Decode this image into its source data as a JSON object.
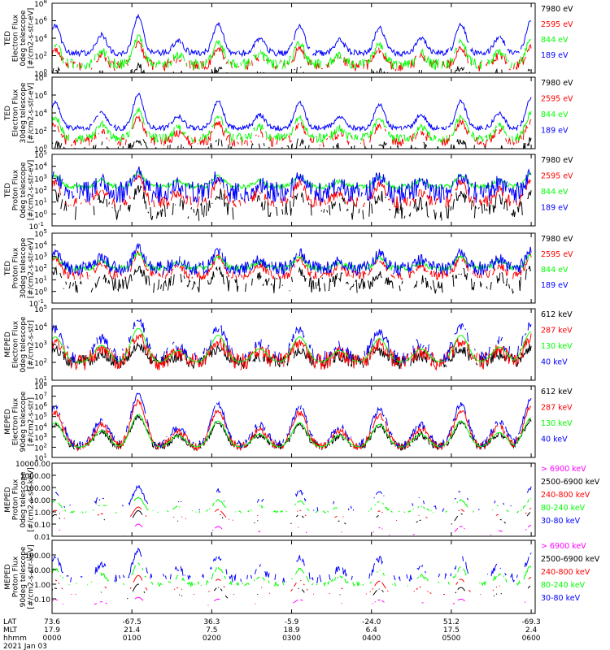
{
  "figure": {
    "footer_labels": [
      "LAT",
      "MLT",
      "hhmm",
      "2021 Jan 03"
    ],
    "time_axis": {
      "ticks": [
        "0000",
        "0100",
        "0200",
        "0300",
        "0400",
        "0500",
        "0600"
      ],
      "lat": [
        "73.6",
        "-67.5",
        "36.3",
        "-5.9",
        "-24.0",
        "51.2",
        "-69.3"
      ],
      "mlt": [
        "17.9",
        "21.4",
        "7.5",
        "18.9",
        "6.4",
        "17.5",
        "2.4"
      ]
    }
  },
  "chart_data": [
    {
      "type": "line",
      "id": "ted_e0",
      "ylabel": [
        "TED",
        "Electron Flux",
        "0deg telescope",
        "[#/cm2-s-str-eV]"
      ],
      "log": true,
      "ylim": [
        1,
        100000000
      ],
      "ytick_labels": [
        "10^0",
        "10^2",
        "10^4",
        "10^6",
        "10^8"
      ],
      "series": [
        {
          "name": "7980 eV",
          "color": "#000000",
          "floor_exp": -1.0,
          "range_exp": 1.8,
          "noise": 0.9,
          "gap": 0.55
        },
        {
          "name": "2595 eV",
          "color": "#ff0000",
          "floor_exp": 0.8,
          "range_exp": 2.6,
          "noise": 0.6,
          "gap": 0.3
        },
        {
          "name": "844 eV",
          "color": "#00ff00",
          "floor_exp": 1.0,
          "range_exp": 3.2,
          "noise": 0.6,
          "gap": 0.2
        },
        {
          "name": "189 eV",
          "color": "#0000ff",
          "floor_exp": 2.3,
          "range_exp": 4.2,
          "noise": 0.35,
          "gap": 0.02
        }
      ]
    },
    {
      "type": "line",
      "id": "ted_e30",
      "ylabel": [
        "TED",
        "Electron Flux",
        "30deg telescope",
        "[#/cm2-s-str-eV]"
      ],
      "log": true,
      "ylim": [
        1,
        100000000
      ],
      "ytick_labels": [
        "10^0",
        "10^2",
        "10^4",
        "10^6",
        "10^8"
      ],
      "series": [
        {
          "name": "7980 eV",
          "color": "#000000",
          "floor_exp": -0.5,
          "range_exp": 1.5,
          "noise": 0.9,
          "gap": 0.5
        },
        {
          "name": "2595 eV",
          "color": "#ff0000",
          "floor_exp": 0.8,
          "range_exp": 2.6,
          "noise": 0.6,
          "gap": 0.3
        },
        {
          "name": "844 eV",
          "color": "#00ff00",
          "floor_exp": 1.2,
          "range_exp": 3.1,
          "noise": 0.5,
          "gap": 0.15
        },
        {
          "name": "189 eV",
          "color": "#0000ff",
          "floor_exp": 2.3,
          "range_exp": 3.8,
          "noise": 0.3,
          "gap": 0.02
        }
      ]
    },
    {
      "type": "line",
      "id": "ted_p0",
      "ylabel": [
        "TED",
        "Proton Flux",
        "0deg telescope",
        "[#/cm2-s-str-eV]"
      ],
      "log": true,
      "ylim": [
        0.1,
        100000
      ],
      "ytick_labels": [
        "10^-1",
        "10^0",
        "10^1",
        "10^2",
        "10^3",
        "10^4",
        "10^5"
      ],
      "series": [
        {
          "name": "7980 eV",
          "color": "#000000",
          "floor_exp": 0.2,
          "range_exp": 2.0,
          "noise": 0.8,
          "gap": 0.45
        },
        {
          "name": "2595 eV",
          "color": "#ff0000",
          "floor_exp": 1.0,
          "range_exp": 2.2,
          "noise": 0.5,
          "gap": 0.3
        },
        {
          "name": "844 eV",
          "color": "#00ff00",
          "floor_exp": 2.3,
          "range_exp": 1.2,
          "noise": 0.2,
          "gap": 0.0
        },
        {
          "name": "189 eV",
          "color": "#0000ff",
          "floor_exp": 1.8,
          "range_exp": 1.8,
          "noise": 0.9,
          "gap": 0.1
        }
      ]
    },
    {
      "type": "line",
      "id": "ted_p30",
      "ylabel": [
        "TED",
        "Proton Flux",
        "30deg telescope",
        "[#/cm2-s-str-eV]"
      ],
      "log": true,
      "ylim": [
        0.1,
        100000
      ],
      "ytick_labels": [
        "10^-1",
        "10^0",
        "10^1",
        "10^2",
        "10^3",
        "10^4",
        "10^5"
      ],
      "series": [
        {
          "name": "7980 eV",
          "color": "#000000",
          "floor_exp": 0.5,
          "range_exp": 1.6,
          "noise": 0.7,
          "gap": 0.35
        },
        {
          "name": "2595 eV",
          "color": "#ff0000",
          "floor_exp": 1.4,
          "range_exp": 1.9,
          "noise": 0.4,
          "gap": 0.2
        },
        {
          "name": "844 eV",
          "color": "#00ff00",
          "floor_exp": 2.0,
          "range_exp": 1.3,
          "noise": 0.25,
          "gap": 0.0
        },
        {
          "name": "189 eV",
          "color": "#0000ff",
          "floor_exp": 2.0,
          "range_exp": 1.8,
          "noise": 0.6,
          "gap": 0.05
        }
      ]
    },
    {
      "type": "line",
      "id": "meped_e0",
      "ylabel": [
        "MEPED",
        "Electron Flux",
        "0deg telescope",
        "[#/cm2-s-str]"
      ],
      "log": true,
      "ylim": [
        10,
        100000
      ],
      "ytick_labels": [
        "10^1",
        "10^2",
        "10^3",
        "10^4",
        "10^5"
      ],
      "series": [
        {
          "name": "612 keV",
          "color": "#000000",
          "floor_exp": 2.0,
          "range_exp": 0.9,
          "noise": 0.4,
          "gap": 0.1
        },
        {
          "name": "287 keV",
          "color": "#ff0000",
          "floor_exp": 2.0,
          "range_exp": 1.5,
          "noise": 0.5,
          "gap": 0.05
        },
        {
          "name": "130 keV",
          "color": "#00ff00",
          "floor_exp": 2.0,
          "range_exp": 1.9,
          "noise": 0.0,
          "gap": 0.0
        },
        {
          "name": "40 keV",
          "color": "#0000ff",
          "floor_exp": 2.2,
          "range_exp": 2.2,
          "noise": 0.4,
          "gap": 0.5
        }
      ]
    },
    {
      "type": "line",
      "id": "meped_e90",
      "ylabel": [
        "MEPED",
        "Electron Flux",
        "90deg telescope",
        "[#/cm2-s-str]"
      ],
      "log": true,
      "ylim": [
        10,
        100000000
      ],
      "ytick_labels": [
        "10^1",
        "10^2",
        "10^3",
        "10^4",
        "10^5",
        "10^6",
        "10^7",
        "10^8"
      ],
      "series": [
        {
          "name": "612 keV",
          "color": "#000000",
          "floor_exp": 2.0,
          "range_exp": 3.0,
          "noise": 0.4,
          "gap": 0.1
        },
        {
          "name": "287 keV",
          "color": "#ff0000",
          "floor_exp": 2.0,
          "range_exp": 4.5,
          "noise": 0.4,
          "gap": 0.05
        },
        {
          "name": "130 keV",
          "color": "#00ff00",
          "floor_exp": 2.0,
          "range_exp": 3.2,
          "noise": 0.0,
          "gap": 0.0
        },
        {
          "name": "40 keV",
          "color": "#0000ff",
          "floor_exp": 2.2,
          "range_exp": 5.0,
          "noise": 0.4,
          "gap": 0.3
        }
      ]
    },
    {
      "type": "line",
      "id": "meped_p0",
      "ylabel": [
        "MEPED",
        "Proton Flux",
        "0deg telescope",
        "[#/cm2-s-str-keV]"
      ],
      "log": true,
      "ylim": [
        0.01,
        10000
      ],
      "ytick_labels": [
        "0.01",
        "0.10",
        "1.00",
        "10.00",
        "100.00",
        "1000.00",
        "10000.00"
      ],
      "series": [
        {
          "name": "> 6900 keV",
          "color": "#ff00ff",
          "floor_exp": -2.0,
          "range_exp": 1.0,
          "noise": 0.0,
          "gap": 0.97
        },
        {
          "name": "2500-6900 keV",
          "color": "#000000",
          "floor_exp": -1.2,
          "range_exp": 1.3,
          "noise": 0.0,
          "gap": 0.97
        },
        {
          "name": "240-800 keV",
          "color": "#ff0000",
          "floor_exp": -0.7,
          "range_exp": 1.1,
          "noise": 0.0,
          "gap": 0.9
        },
        {
          "name": "80-240 keV",
          "color": "#00ff00",
          "floor_exp": 0.0,
          "range_exp": 1.2,
          "noise": 0.1,
          "gap": 0.6
        },
        {
          "name": "30-80 keV",
          "color": "#0000ff",
          "floor_exp": 0.3,
          "range_exp": 1.8,
          "noise": 0.3,
          "gap": 0.8
        }
      ]
    },
    {
      "type": "line",
      "id": "meped_p90",
      "ylabel": [
        "MEPED",
        "Proton Flux",
        "90deg telescope",
        "[#/cm2-s-str-keV]"
      ],
      "log": true,
      "ylim": [
        0.01,
        1000
      ],
      "ytick_labels": [
        "0.10",
        "1.00",
        "10.00",
        "100.00"
      ],
      "series": [
        {
          "name": "> 6900 keV",
          "color": "#ff00ff",
          "floor_exp": -1.5,
          "range_exp": 0.6,
          "noise": 0.0,
          "gap": 0.97
        },
        {
          "name": "2500-6900 keV",
          "color": "#000000",
          "floor_exp": -1.1,
          "range_exp": 1.1,
          "noise": 0.0,
          "gap": 0.95
        },
        {
          "name": "240-800 keV",
          "color": "#ff0000",
          "floor_exp": -0.7,
          "range_exp": 1.3,
          "noise": 0.0,
          "gap": 0.85
        },
        {
          "name": "80-240 keV",
          "color": "#00ff00",
          "floor_exp": 0.0,
          "range_exp": 1.4,
          "noise": 0.15,
          "gap": 0.5
        },
        {
          "name": "30-80 keV",
          "color": "#0000ff",
          "floor_exp": 0.4,
          "range_exp": 1.9,
          "noise": 0.3,
          "gap": 0.55
        }
      ]
    }
  ],
  "event_times_hours": [
    0.04,
    0.62,
    1.08,
    1.58,
    2.08,
    2.6,
    3.1,
    3.6,
    4.1,
    4.62,
    5.12,
    5.6,
    6.0
  ],
  "event_strength": [
    0.75,
    0.5,
    1.0,
    0.35,
    0.8,
    0.4,
    0.75,
    0.35,
    0.7,
    0.4,
    0.8,
    0.45,
    0.9
  ]
}
